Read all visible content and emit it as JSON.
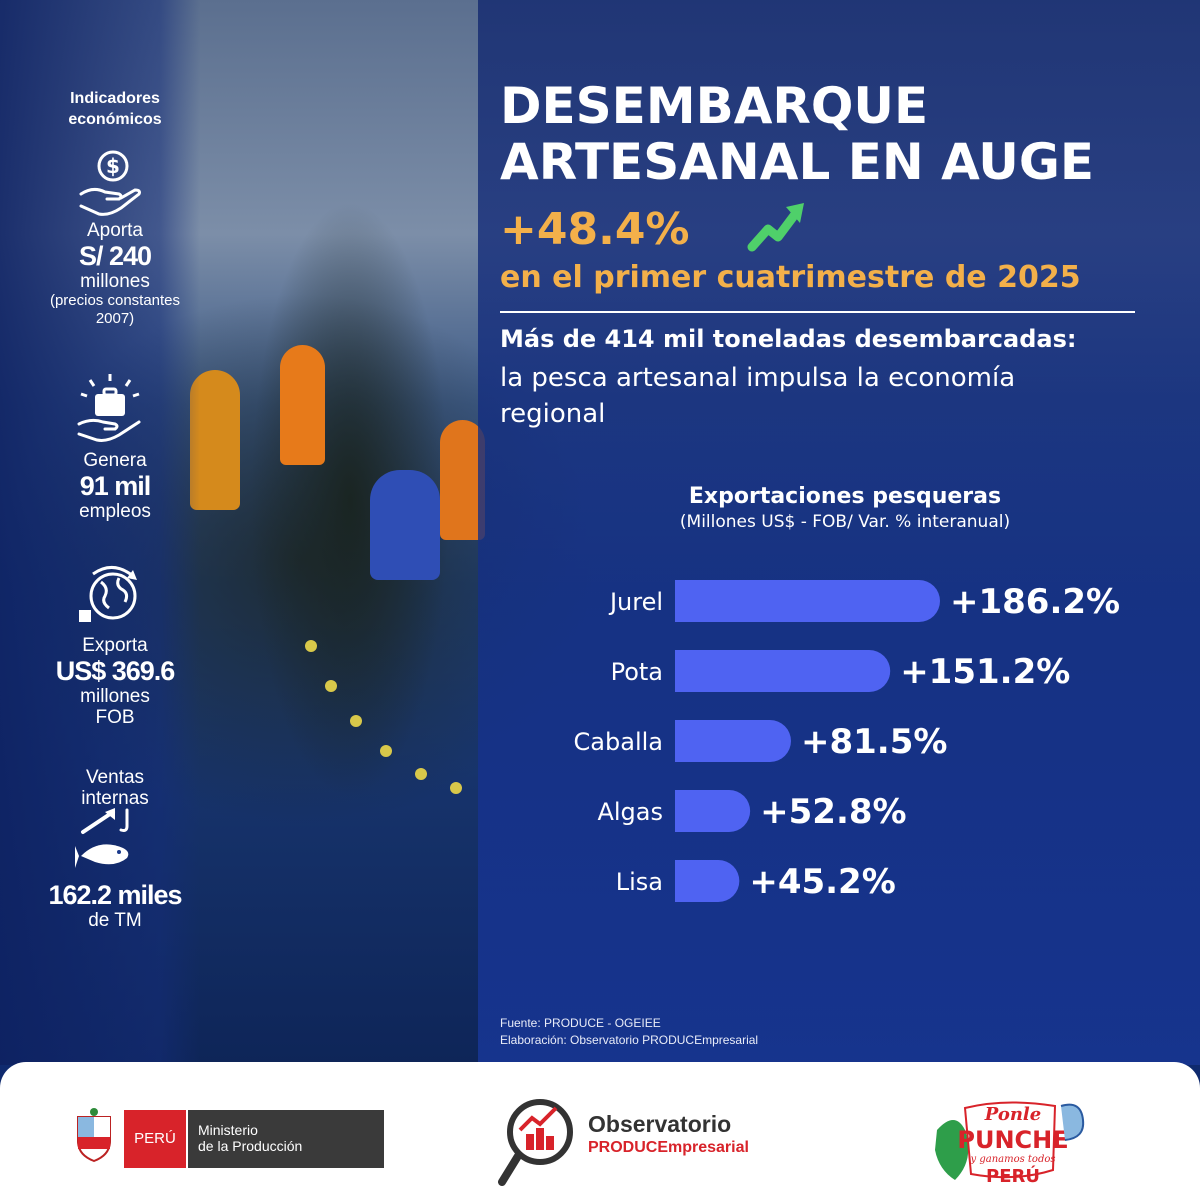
{
  "indicators": {
    "title_line1": "Indicadores",
    "title_line2": "económicos",
    "aporta": {
      "label": "Aporta",
      "value": "S/ 240",
      "unit": "millones",
      "note_line1": "(precios constantes",
      "note_line2": "2007)",
      "icon": "money-hand-icon"
    },
    "genera": {
      "label": "Genera",
      "value": "91 mil",
      "unit": "empleos",
      "icon": "briefcase-hand-icon"
    },
    "exporta": {
      "label": "Exporta",
      "value": "US$ 369.6",
      "unit_line1": "millones",
      "unit_line2": "FOB",
      "icon": "globe-export-icon"
    },
    "ventas": {
      "label_line1": "Ventas",
      "label_line2": "internas",
      "value": "162.2 miles",
      "unit": "de TM",
      "icon": "fish-hook-icon"
    }
  },
  "headline": {
    "title_line1": "DESEMBARQUE",
    "title_line2": "ARTESANAL EN AUGE",
    "percent": "+48.4%",
    "period": "en el primer cuatrimestre de 2025",
    "lead": "Más de 414 mil toneladas desembarcadas:",
    "description": "la pesca artesanal impulsa la economía regional"
  },
  "chart_data": {
    "type": "bar",
    "orientation": "horizontal",
    "title": "Exportaciones pesqueras",
    "subtitle": "(Millones US$ - FOB/ Var. % interanual)",
    "categories": [
      "Jurel",
      "Pota",
      "Caballa",
      "Algas",
      "Lisa"
    ],
    "values": [
      186.2,
      151.2,
      81.5,
      52.8,
      45.2
    ],
    "value_labels": [
      "+186.2%",
      "+151.2%",
      "+81.5%",
      "+52.8%",
      "+45.2%"
    ],
    "bar_color": "#4f63f2"
  },
  "source": {
    "line1": "Fuente: PRODUCE - OGEIEE",
    "line2": "Elaboración: Observatorio PRODUCEmpresarial"
  },
  "footer": {
    "peru": "PERÚ",
    "ministry_line1": "Ministerio",
    "ministry_line2": "de la Producción",
    "observatorio": "Observatorio",
    "observatorio_sub": "PRODUCEmpresarial"
  },
  "colors": {
    "accent": "#f3b04a",
    "background": "#1a3a8c",
    "peru_red": "#d8232a"
  }
}
